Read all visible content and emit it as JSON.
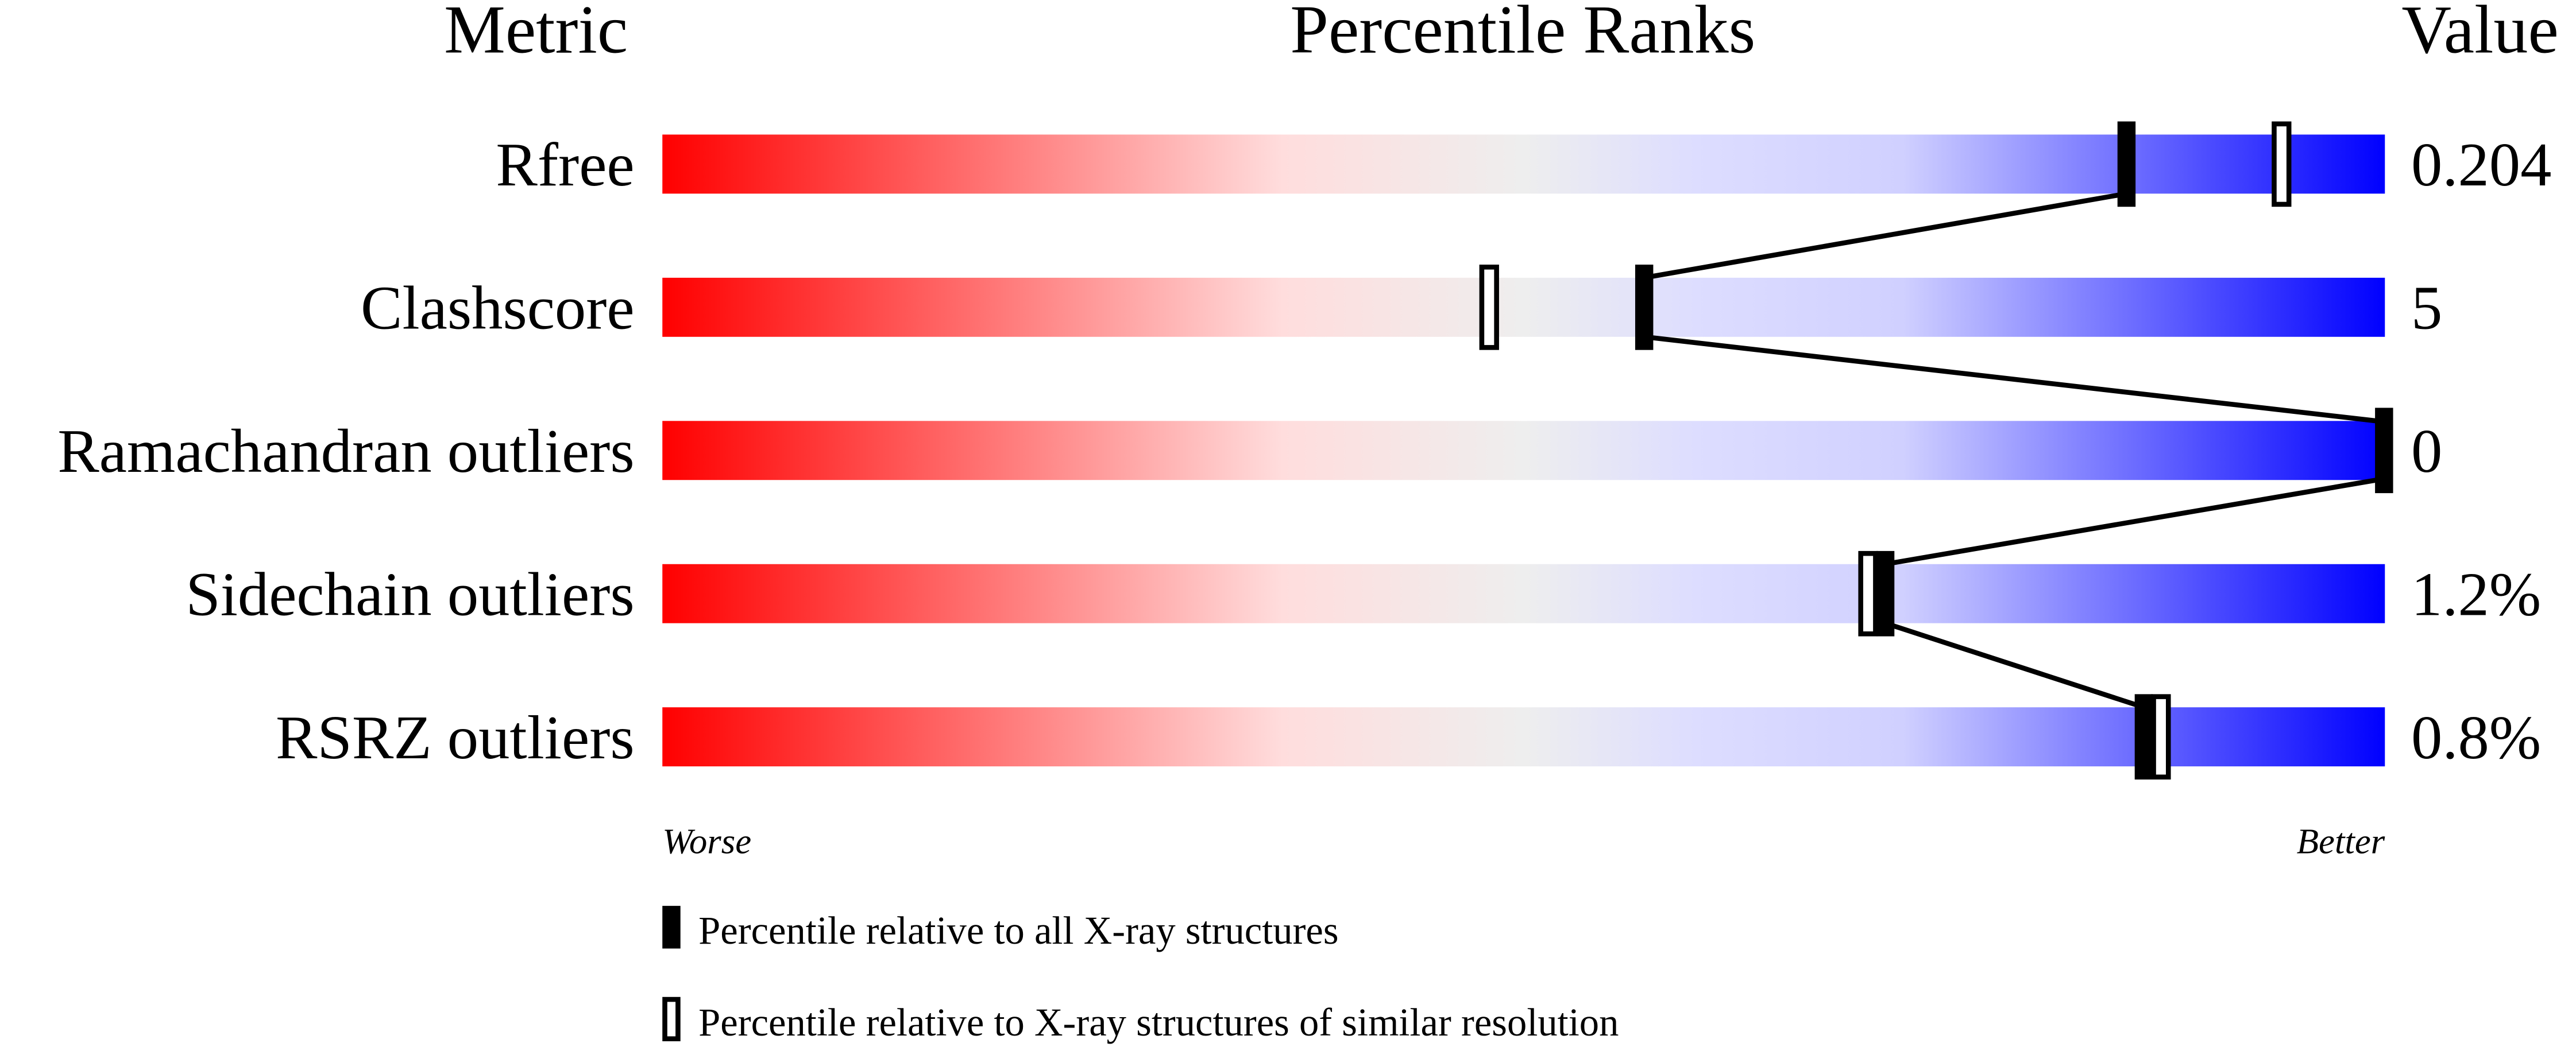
{
  "chart_data": {
    "type": "bar",
    "headers": {
      "metric": "Metric",
      "ranks": "Percentile Ranks",
      "value": "Value"
    },
    "axis_range": [
      0,
      100
    ],
    "axis_labels": {
      "left": "Worse",
      "right": "Better"
    },
    "categories": [
      "Rfree",
      "Clashscore",
      "Ramachandran outliers",
      "Sidechain outliers",
      "RSRZ outliers"
    ],
    "values_text": [
      "0.204",
      "5",
      "0",
      "1.2%",
      "0.8%"
    ],
    "series": [
      {
        "name": "Percentile relative to all X-ray structures",
        "style": "filled",
        "values": [
          85,
          57,
          100,
          71,
          86
        ]
      },
      {
        "name": "Percentile relative to X-ray structures of similar resolution",
        "style": "open",
        "values": [
          94,
          48,
          null,
          70,
          87
        ]
      }
    ],
    "gradient_colors": [
      "#ff0000",
      "#ffdddd",
      "#eeeeee",
      "#ddddff",
      "#0000ff"
    ]
  }
}
